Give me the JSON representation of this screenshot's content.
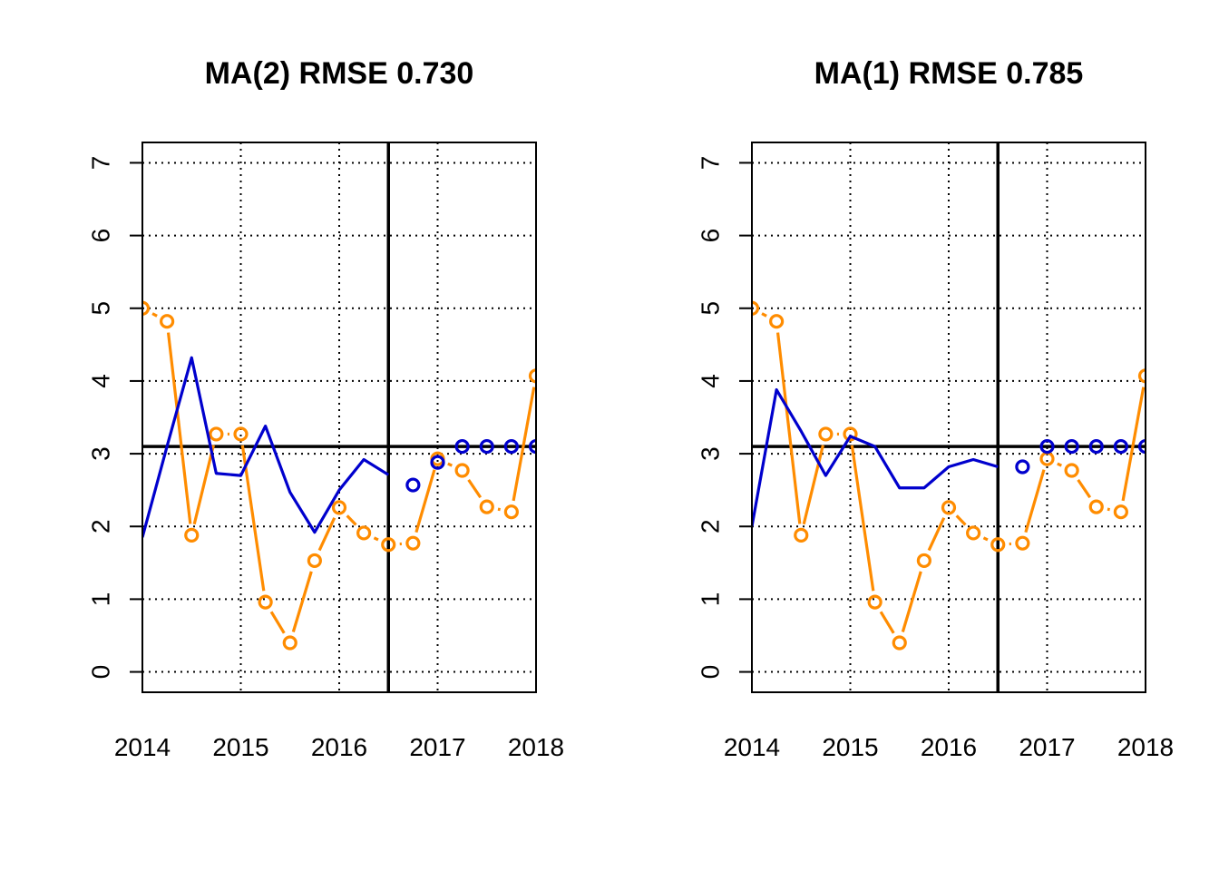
{
  "chart_data": [
    {
      "type": "line",
      "title": "MA(2) RMSE 0.730",
      "xlabel": "",
      "ylabel": "",
      "xlim": [
        2014,
        2018
      ],
      "ylim": [
        0,
        7
      ],
      "x_ticks": [
        "2014",
        "2015",
        "2016",
        "2017",
        "2018"
      ],
      "y_ticks": [
        "0",
        "1",
        "2",
        "3",
        "4",
        "5",
        "6",
        "7"
      ],
      "grid": true,
      "reference_lines": {
        "horizontal_y": 3.1,
        "vertical_x": 2016.5
      },
      "series": [
        {
          "style": "points-and-lines",
          "color": "#FF8C00",
          "x": [
            2014.0,
            2014.25,
            2014.5,
            2014.75,
            2015.0,
            2015.25,
            2015.5,
            2015.75,
            2016.0,
            2016.25,
            2016.5,
            2016.75,
            2017.0,
            2017.25,
            2017.5,
            2017.75,
            2018.0
          ],
          "y": [
            5.0,
            4.82,
            1.88,
            3.27,
            3.27,
            0.96,
            0.4,
            1.53,
            2.26,
            1.91,
            1.75,
            1.77,
            2.93,
            2.77,
            2.27,
            2.2,
            4.07
          ]
        },
        {
          "style": "line",
          "color": "#0000CD",
          "x": [
            2014.0,
            2014.25,
            2014.5,
            2014.75,
            2015.0,
            2015.25,
            2015.5,
            2015.75,
            2016.0,
            2016.25,
            2016.5
          ],
          "y": [
            1.85,
            3.1,
            4.32,
            2.73,
            2.7,
            3.38,
            2.47,
            1.92,
            2.5,
            2.92,
            2.71
          ]
        },
        {
          "style": "points",
          "color": "#0000CD",
          "x": [
            2016.75,
            2017.0,
            2017.25,
            2017.5,
            2017.75,
            2018.0
          ],
          "y": [
            2.57,
            2.88,
            3.1,
            3.1,
            3.1,
            3.1
          ]
        }
      ]
    },
    {
      "type": "line",
      "title": "MA(1) RMSE 0.785",
      "xlabel": "",
      "ylabel": "",
      "xlim": [
        2014,
        2018
      ],
      "ylim": [
        0,
        7
      ],
      "x_ticks": [
        "2014",
        "2015",
        "2016",
        "2017",
        "2018"
      ],
      "y_ticks": [
        "0",
        "1",
        "2",
        "3",
        "4",
        "5",
        "6",
        "7"
      ],
      "grid": true,
      "reference_lines": {
        "horizontal_y": 3.1,
        "vertical_x": 2016.5
      },
      "series": [
        {
          "style": "points-and-lines",
          "color": "#FF8C00",
          "x": [
            2014.0,
            2014.25,
            2014.5,
            2014.75,
            2015.0,
            2015.25,
            2015.5,
            2015.75,
            2016.0,
            2016.25,
            2016.5,
            2016.75,
            2017.0,
            2017.25,
            2017.5,
            2017.75,
            2018.0
          ],
          "y": [
            5.0,
            4.82,
            1.88,
            3.27,
            3.27,
            0.96,
            0.4,
            1.53,
            2.26,
            1.91,
            1.75,
            1.77,
            2.93,
            2.77,
            2.27,
            2.2,
            4.07
          ]
        },
        {
          "style": "line",
          "color": "#0000CD",
          "x": [
            2014.0,
            2014.25,
            2014.5,
            2014.75,
            2015.0,
            2015.25,
            2015.5,
            2015.75,
            2016.0,
            2016.25,
            2016.5
          ],
          "y": [
            2.0,
            3.88,
            3.31,
            2.7,
            3.24,
            3.1,
            2.53,
            2.53,
            2.82,
            2.92,
            2.82
          ]
        },
        {
          "style": "points",
          "color": "#0000CD",
          "x": [
            2016.75,
            2017.0,
            2017.25,
            2017.5,
            2017.75,
            2018.0
          ],
          "y": [
            2.82,
            3.1,
            3.1,
            3.1,
            3.1,
            3.1
          ]
        }
      ]
    }
  ]
}
